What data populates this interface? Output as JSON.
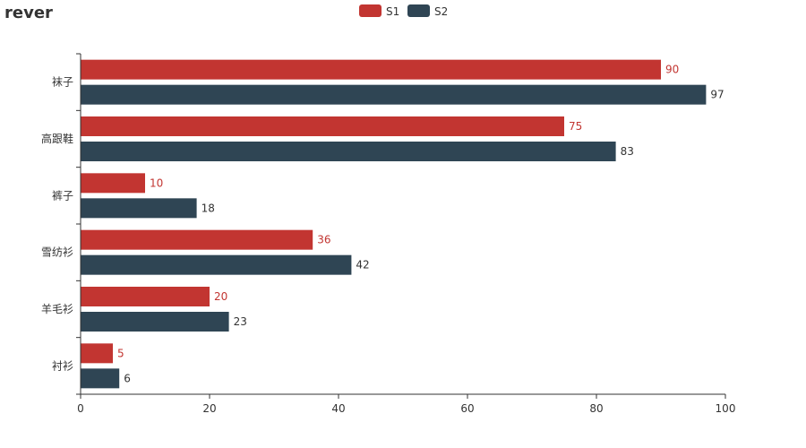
{
  "chart_data": {
    "type": "bar",
    "orientation": "horizontal",
    "title": "rever",
    "categories": [
      "衬衫",
      "羊毛衫",
      "雪纺衫",
      "裤子",
      "高跟鞋",
      "袜子"
    ],
    "series": [
      {
        "name": "S1",
        "values": [
          5,
          20,
          36,
          10,
          75,
          90
        ],
        "color": "#c23531"
      },
      {
        "name": "S2",
        "values": [
          6,
          23,
          42,
          18,
          83,
          97
        ],
        "color": "#2f4554"
      }
    ],
    "xlim": [
      0,
      100
    ],
    "xticks": [
      0,
      20,
      40,
      60,
      80,
      100
    ],
    "legend_position": "top-center",
    "grid": false,
    "data_labels": true
  }
}
